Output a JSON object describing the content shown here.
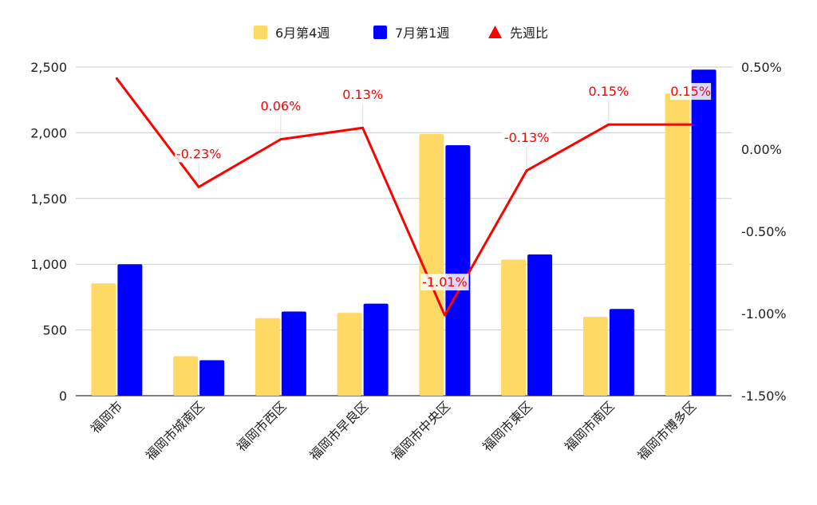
{
  "chart_data": {
    "type": "bar",
    "categories": [
      "福岡市",
      "福岡市城南区",
      "福岡市西区",
      "福岡市早良区",
      "福岡市中央区",
      "福岡市東区",
      "福岡市南区",
      "福岡市博多区"
    ],
    "series": [
      {
        "name": "6月第4週",
        "type": "bar",
        "axis": "left",
        "color": "#FFD966",
        "values": [
          855,
          300,
          590,
          630,
          1990,
          1035,
          600,
          2300
        ]
      },
      {
        "name": "7月第1週",
        "type": "bar",
        "axis": "left",
        "color": "#0000FF",
        "values": [
          1000,
          270,
          640,
          700,
          1905,
          1075,
          660,
          2480
        ]
      },
      {
        "name": "先週比",
        "type": "line",
        "axis": "right",
        "color": "#FF0000",
        "values": [
          0.43,
          -0.23,
          0.06,
          0.13,
          -1.01,
          -0.13,
          0.15,
          0.15
        ],
        "data_labels": [
          "",
          "-0.23%",
          "0.06%",
          "0.13%",
          "-1.01%",
          "-0.13%",
          "0.15%",
          "0.15%"
        ]
      }
    ],
    "y_left": {
      "min": 0,
      "max": 2500,
      "ticks": [
        "0",
        "500",
        "1,000",
        "1,500",
        "2,000",
        "2,500"
      ]
    },
    "y_right": {
      "min": -1.5,
      "max": 0.5,
      "ticks": [
        "-1.50%",
        "-1.00%",
        "-0.50%",
        "0.00%",
        "0.50%"
      ]
    },
    "grid": true,
    "legend_position": "top"
  }
}
